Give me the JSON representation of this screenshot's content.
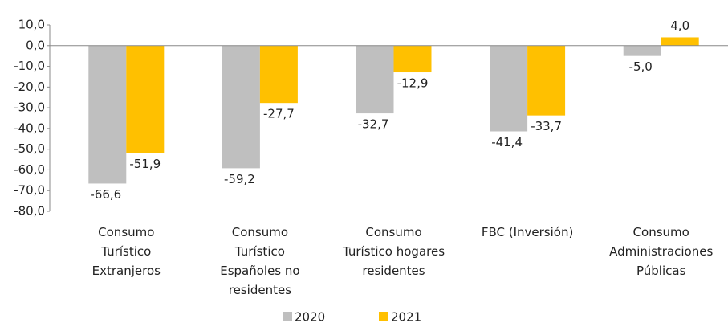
{
  "chart_data": {
    "type": "bar",
    "categories": [
      "Consumo\nTurístico\nExtranjeros",
      "Consumo\nTurístico\nEspañoles no\nresidentes",
      "Consumo\nTurístico hogares\nresidentes",
      "FBC (Inversión)",
      "Consumo\nAdministraciones\nPúblicas"
    ],
    "series": [
      {
        "name": "2020",
        "color": "#bfbfbf",
        "values": [
          -66.6,
          -59.2,
          -32.7,
          -41.4,
          -5.0
        ],
        "value_labels": [
          "-66,6",
          "-59,2",
          "-32,7",
          "-41,4",
          "-5,0"
        ]
      },
      {
        "name": "2021",
        "color": "#ffc000",
        "values": [
          -51.9,
          -27.7,
          -12.9,
          -33.7,
          4.0
        ],
        "value_labels": [
          "-51,9",
          "-27,7",
          "-12,9",
          "-33,7",
          "4,0"
        ]
      }
    ],
    "ylim": [
      -80,
      10
    ],
    "yticks": [
      {
        "value": 10,
        "label": "10,0"
      },
      {
        "value": 0,
        "label": "0,0"
      },
      {
        "value": -10,
        "label": "-10,0"
      },
      {
        "value": -20,
        "label": "-20,0"
      },
      {
        "value": -30,
        "label": "-30,0"
      },
      {
        "value": -40,
        "label": "-40,0"
      },
      {
        "value": -50,
        "label": "-50,0"
      },
      {
        "value": -60,
        "label": "-60,0"
      },
      {
        "value": -70,
        "label": "-70,0"
      },
      {
        "value": -80,
        "label": "-80,0"
      }
    ],
    "legend": "bottom"
  }
}
